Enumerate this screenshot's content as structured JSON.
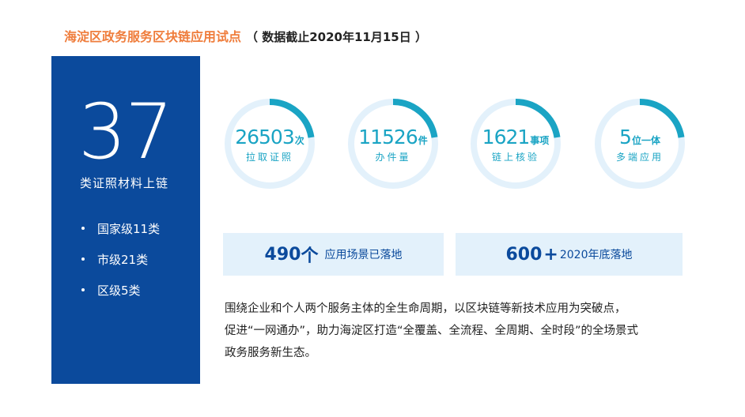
{
  "header": {
    "title": "海淀区政务服务区块链应用试点",
    "note": "（ 数据截止2020年11月15日 ）"
  },
  "left_panel": {
    "big_number": "37",
    "caption": "类证照材料上链",
    "categories": [
      "国家级11类",
      "市级21类",
      "区级5类"
    ]
  },
  "stats": [
    {
      "value": "26503",
      "unit": "次",
      "label": "拉取证照"
    },
    {
      "value": "11526",
      "unit": "件",
      "label": "办件量"
    },
    {
      "value": "1621",
      "unit": "事项",
      "label": "链上核验"
    },
    {
      "value": "5",
      "unit": "位一体",
      "label": "多端应用"
    }
  ],
  "highlights": [
    {
      "value": "490",
      "suffix": "个",
      "label": "应用场景已落地"
    },
    {
      "value": "600",
      "suffix": "+",
      "label": "2020年底落地"
    }
  ],
  "description": [
    "围绕企业和个人两个服务主体的全生命周期，以区块链等新技术应用为突破点，",
    "促进“一网通办”，助力海淀区打造“全覆盖、全流程、全周期、全时段”的全场景式",
    "政务服务新生态。"
  ],
  "colors": {
    "title_accent": "#ef7d3c",
    "panel_blue": "#0b4a9c",
    "ring_teal": "#1aa4c4",
    "ring_track": "#e3f1fb",
    "box_bg": "#e3f1fb"
  }
}
